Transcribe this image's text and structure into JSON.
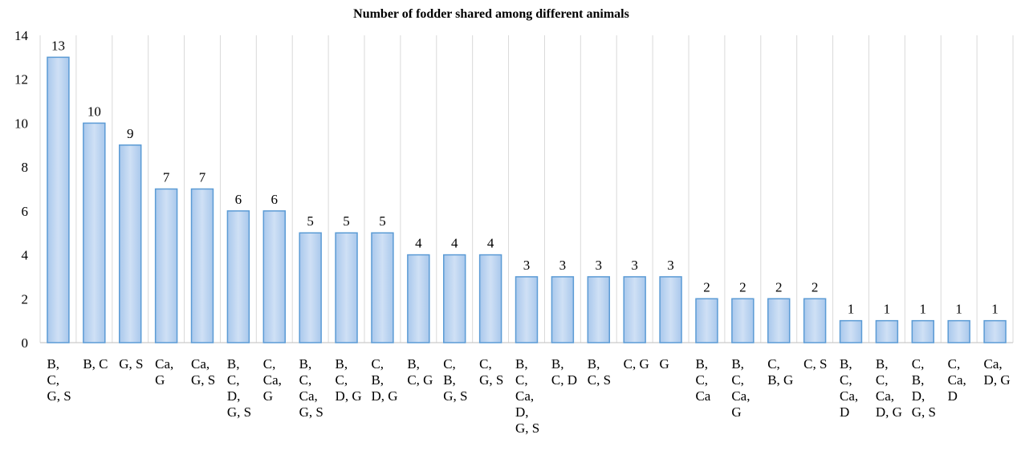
{
  "chart_data": {
    "type": "bar",
    "title": "Number of fodder shared among different animals",
    "categories": [
      "B, C, G, S",
      "B, C",
      "G, S",
      "Ca, G",
      "Ca, G, S",
      "B, C, D, G, S",
      "C, Ca, G",
      "B, C, Ca, G, S",
      "B, C, D, G",
      "C, B, D, G",
      "B, C, G",
      "C, B, G, S",
      "C, G, S",
      "B, C, Ca, D, G, S",
      "B, C, D",
      "B, C, S",
      "C, G",
      "G",
      "B, C, Ca",
      "B, C, Ca, G",
      "C, B, G",
      "C, S",
      "B, C, Ca, D",
      "B, C, Ca, D, G",
      "C, B, D, G, S",
      "C, Ca, D",
      "Ca, D, G"
    ],
    "values": [
      13,
      10,
      9,
      7,
      7,
      6,
      6,
      5,
      5,
      5,
      4,
      4,
      4,
      3,
      3,
      3,
      3,
      3,
      2,
      2,
      2,
      2,
      1,
      1,
      1,
      1,
      1
    ],
    "color": "#5b9bd5",
    "ylim": [
      0,
      14
    ],
    "yticks": [
      0,
      2,
      4,
      6,
      8,
      10,
      12,
      14
    ],
    "grid": true
  }
}
